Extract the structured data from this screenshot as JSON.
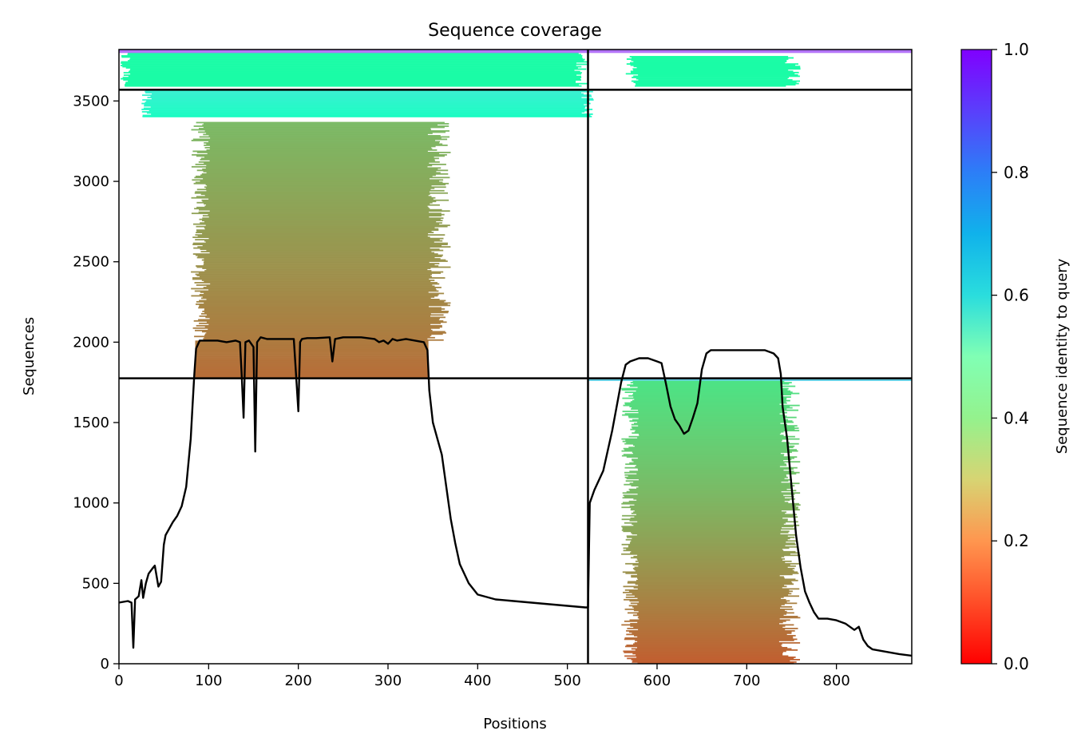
{
  "chart_data": {
    "type": "heatmap",
    "title": "Sequence coverage",
    "xlabel": "Positions",
    "ylabel": "Sequences",
    "xlim": [
      0,
      884
    ],
    "ylim": [
      0,
      3820
    ],
    "x_ticks": [
      0,
      100,
      200,
      300,
      400,
      500,
      600,
      700,
      800
    ],
    "y_ticks": [
      0,
      500,
      1000,
      1500,
      2000,
      2500,
      3000,
      3500
    ],
    "grid": false,
    "dividers": {
      "vertical_x": [
        523
      ],
      "horizontal_y": [
        1775,
        3570
      ]
    },
    "colorbar": {
      "label": "Sequence identity to query",
      "colormap": "rainbow_r",
      "range": [
        0.0,
        1.0
      ],
      "ticks": [
        "0.0",
        "0.2",
        "0.4",
        "0.6",
        "0.8",
        "1.0"
      ]
    },
    "blocks": [
      {
        "x0": 85,
        "x1": 345,
        "y0": 1775,
        "y1": 2010,
        "identity_bottom": 0.14,
        "identity_top": 0.16,
        "fill": 1.0
      },
      {
        "x0": 80,
        "x1": 370,
        "y0": 2010,
        "y1": 3370,
        "identity_bottom": 0.16,
        "identity_top": 0.26,
        "fill": 0.85
      },
      {
        "x0": 25,
        "x1": 530,
        "y0": 3400,
        "y1": 3570,
        "identity_bottom": 0.55,
        "identity_top": 0.62,
        "fill": 0.95
      },
      {
        "x0": 0,
        "x1": 523,
        "y0": 3590,
        "y1": 3800,
        "identity_bottom": 0.45,
        "identity_top": 0.45,
        "fill": 0.95
      },
      {
        "x0": 0,
        "x1": 523,
        "y0": 3800,
        "y1": 3820,
        "identity_bottom": 0.85,
        "identity_top": 0.85,
        "fill": 1.0
      },
      {
        "x0": 565,
        "x1": 760,
        "y0": 3590,
        "y1": 3780,
        "identity_bottom": 0.45,
        "identity_top": 0.45,
        "fill": 0.85
      },
      {
        "x0": 523,
        "x1": 884,
        "y0": 3800,
        "y1": 3820,
        "identity_bottom": 0.85,
        "identity_top": 0.85,
        "fill": 1.0
      },
      {
        "x0": 523,
        "x1": 884,
        "y0": 1760,
        "y1": 1775,
        "identity_bottom": 0.7,
        "identity_top": 0.7,
        "fill": 1.0
      },
      {
        "x0": 560,
        "x1": 760,
        "y0": 0,
        "y1": 1760,
        "identity_bottom": 0.12,
        "identity_top": 0.35,
        "fill": 0.8
      }
    ],
    "series": [
      {
        "x": [
          0,
          10,
          14,
          16,
          18,
          22,
          25,
          27,
          30,
          33,
          37,
          40,
          44,
          47,
          50,
          52,
          55,
          60,
          65,
          70,
          75,
          80,
          82,
          84,
          86,
          90,
          100,
          110,
          120,
          130,
          135,
          137,
          139,
          141,
          145,
          150,
          152,
          154,
          158,
          165,
          175,
          185,
          195,
          200,
          202,
          204,
          210,
          220,
          235,
          238,
          241,
          250,
          270,
          285,
          290,
          295,
          300,
          305,
          310,
          320,
          340,
          344,
          346,
          350,
          355,
          360,
          365,
          370,
          375,
          380,
          390,
          400,
          420,
          440,
          460,
          480,
          500,
          520,
          523,
          525,
          530,
          540,
          550,
          560,
          565,
          570,
          580,
          590,
          600,
          605,
          610,
          615,
          620,
          625,
          630,
          635,
          640,
          645,
          650,
          655,
          660,
          670,
          680,
          700,
          720,
          730,
          735,
          738,
          740,
          745,
          750,
          755,
          760,
          765,
          770,
          775,
          780,
          790,
          800,
          810,
          820,
          825,
          830,
          835,
          840,
          850,
          860,
          870,
          884
        ],
        "y": [
          380,
          390,
          380,
          100,
          400,
          420,
          520,
          410,
          500,
          560,
          590,
          610,
          480,
          510,
          740,
          800,
          830,
          880,
          920,
          980,
          1100,
          1400,
          1600,
          1800,
          1960,
          2010,
          2010,
          2010,
          2000,
          2010,
          2000,
          1780,
          1530,
          2000,
          2010,
          1970,
          1320,
          2000,
          2030,
          2020,
          2020,
          2020,
          2020,
          1570,
          2000,
          2020,
          2025,
          2025,
          2030,
          1880,
          2020,
          2030,
          2030,
          2020,
          2000,
          2010,
          1990,
          2020,
          2010,
          2020,
          2000,
          1950,
          1700,
          1500,
          1400,
          1300,
          1100,
          900,
          750,
          620,
          500,
          430,
          400,
          390,
          380,
          370,
          360,
          350,
          350,
          1000,
          1080,
          1200,
          1450,
          1750,
          1860,
          1880,
          1900,
          1900,
          1880,
          1870,
          1740,
          1600,
          1520,
          1480,
          1430,
          1450,
          1530,
          1620,
          1830,
          1930,
          1950,
          1950,
          1950,
          1950,
          1950,
          1930,
          1900,
          1800,
          1600,
          1400,
          1100,
          800,
          600,
          450,
          380,
          320,
          280,
          280,
          270,
          250,
          210,
          230,
          150,
          110,
          90,
          80,
          70,
          60,
          50
        ]
      }
    ]
  }
}
